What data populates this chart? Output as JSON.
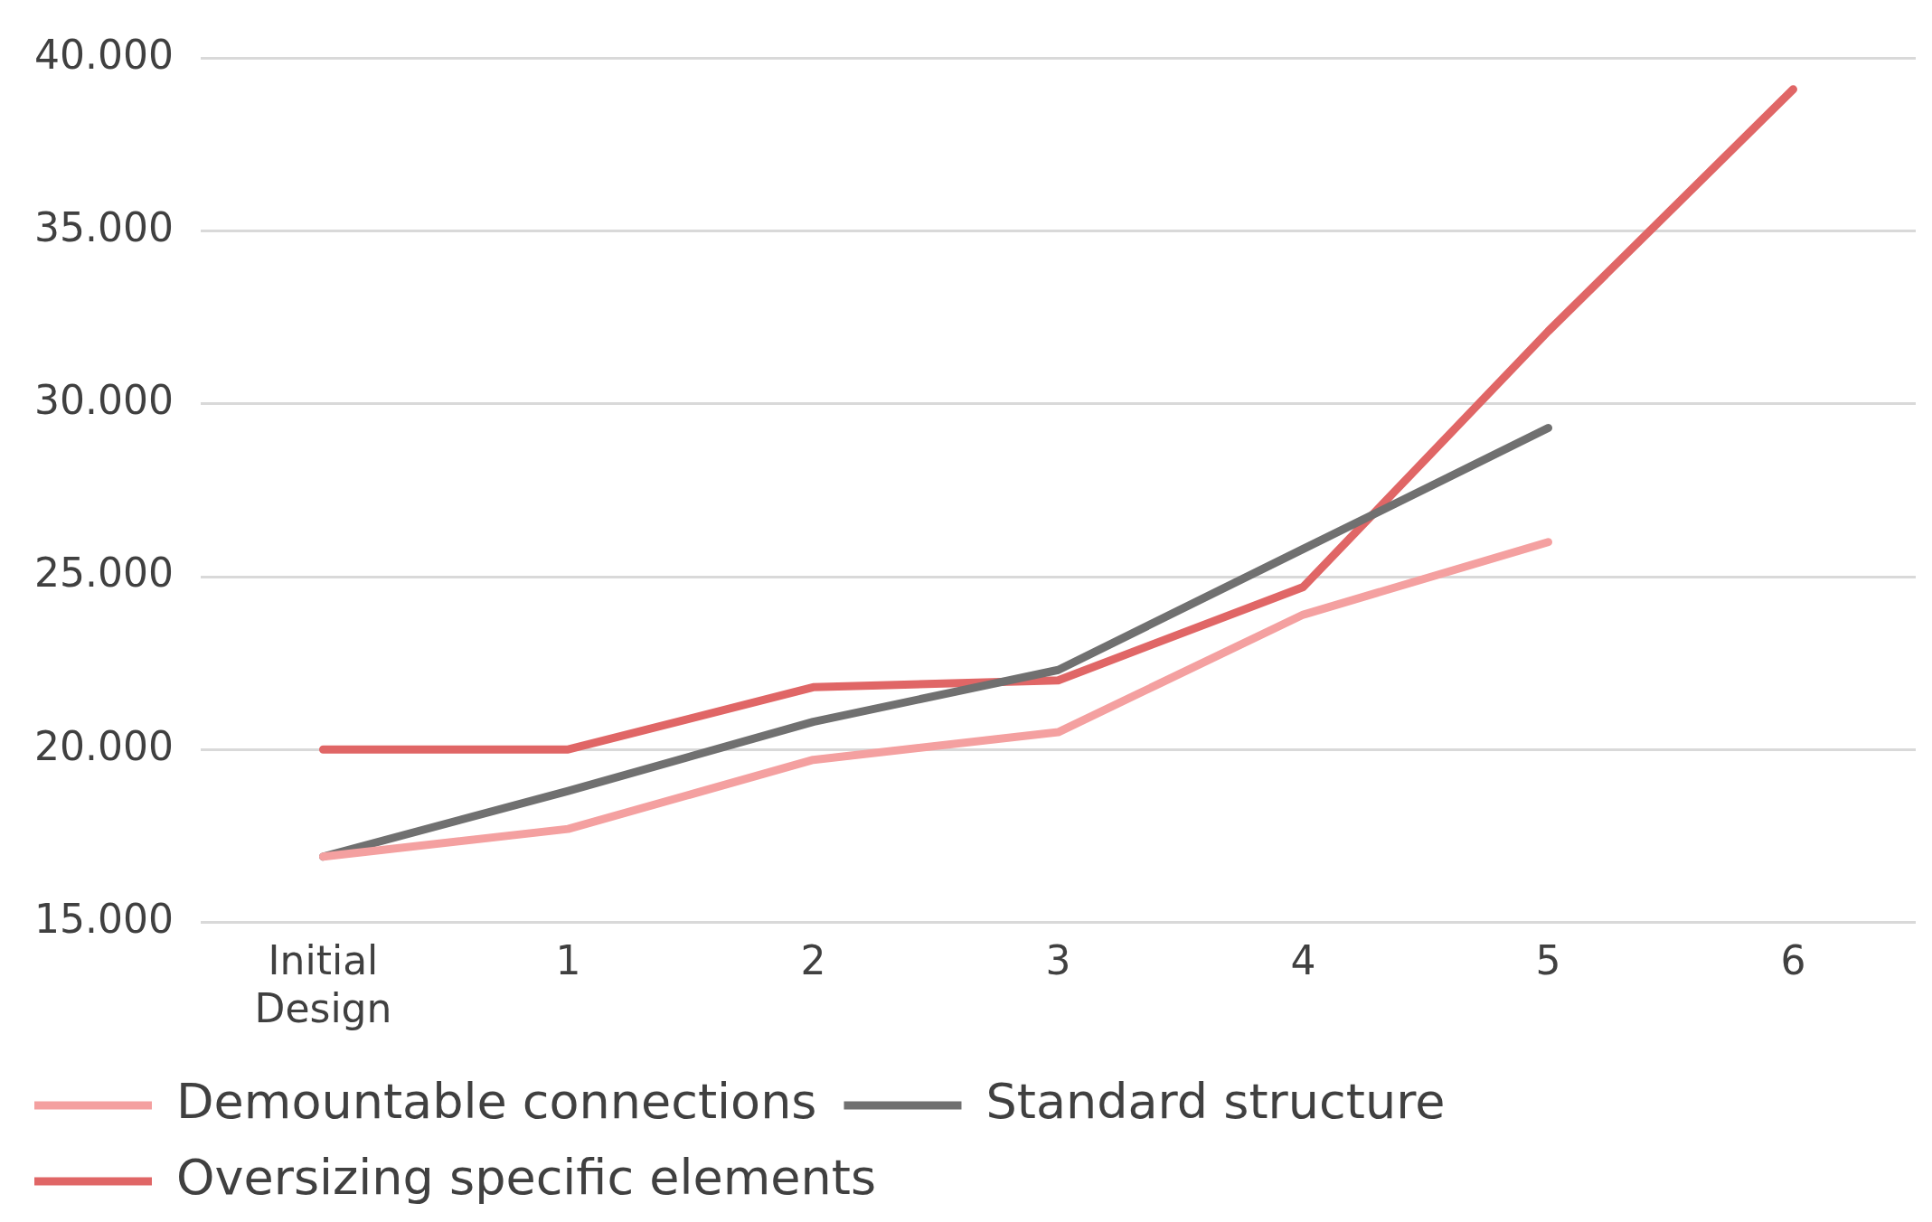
{
  "chart_data": {
    "type": "line",
    "categories": [
      "Initial Design",
      "1",
      "2",
      "3",
      "4",
      "5",
      "6"
    ],
    "series": [
      {
        "name": "Demountable connections",
        "color": "#f4a0a0",
        "values": [
          16900,
          17700,
          19700,
          20500,
          23900,
          26000,
          null
        ]
      },
      {
        "name": "Standard structure",
        "color": "#707070",
        "values": [
          16900,
          18800,
          20800,
          22300,
          25800,
          29300,
          null
        ]
      },
      {
        "name": "Oversizing specific elements",
        "color": "#e06666",
        "values": [
          20000,
          20000,
          21800,
          22000,
          24700,
          32100,
          39100
        ]
      }
    ],
    "ylim": [
      15000,
      40000
    ],
    "yticks": [
      {
        "value": 15000,
        "label": "15.000"
      },
      {
        "value": 20000,
        "label": "20.000"
      },
      {
        "value": 25000,
        "label": "25.000"
      },
      {
        "value": 30000,
        "label": "30.000"
      },
      {
        "value": 35000,
        "label": "35.000"
      },
      {
        "value": 40000,
        "label": "40.000"
      }
    ],
    "grid": "y",
    "legend": "bottom",
    "marker": "none",
    "line_style": "solid"
  }
}
